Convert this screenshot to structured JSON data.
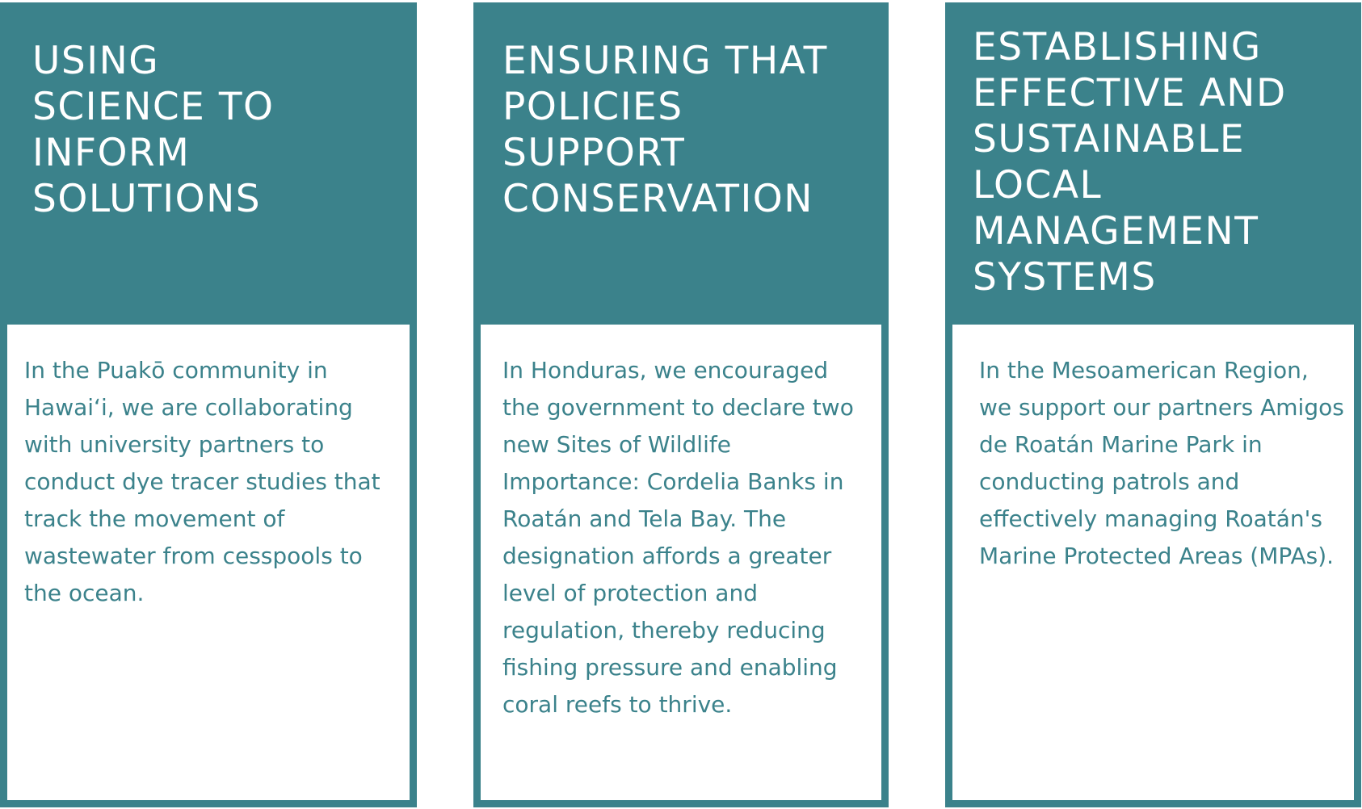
{
  "cards": [
    {
      "title": "USING\nSCIENCE TO\nINFORM\nSOLUTIONS",
      "body": "In the Puakō community in Hawaiʻi, we are collaborating with university partners to conduct dye tracer studies that track the movement of wastewater from cesspools to the ocean."
    },
    {
      "title": "ENSURING THAT\nPOLICIES\nSUPPORT\nCONSERVATION",
      "body": "In Honduras, we encouraged the government to declare two new Sites of Wildlife Importance: Cordelia Banks in Roatán and Tela Bay. The designation affords a greater level of protection and regulation, thereby reducing fishing pressure and enabling coral reefs to thrive."
    },
    {
      "title": "ESTABLISHING\nEFFECTIVE AND\nSUSTAINABLE\nLOCAL\nMANAGEMENT\nSYSTEMS",
      "body": "In the Mesoamerican Region, we support our partners Amigos de Roatán Marine Park in conducting patrols and effectively managing Roatán's Marine Protected Areas (MPAs)."
    }
  ],
  "colors": {
    "accent": "#3b828b",
    "background": "#ffffff",
    "header_text": "#ffffff"
  }
}
